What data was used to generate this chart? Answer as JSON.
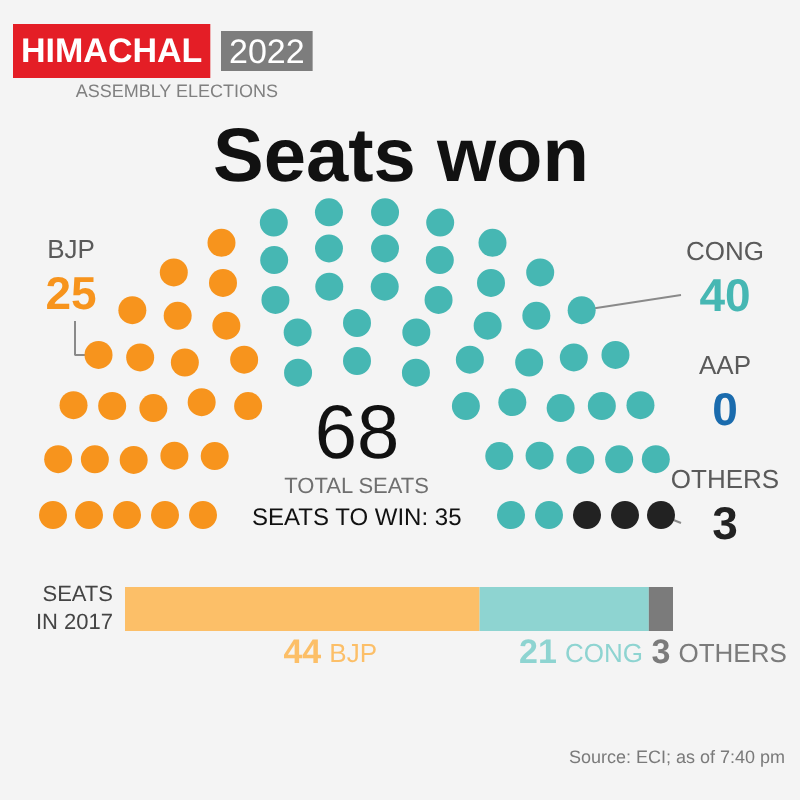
{
  "chart_data": [
    {
      "type": "other",
      "title": "Seats won",
      "categories": [
        "BJP",
        "CONG",
        "AAP",
        "OTHERS"
      ],
      "values": [
        25,
        40,
        0,
        3
      ],
      "colors": [
        "#f7941d",
        "#46b7b3",
        "#1a6bad",
        "#222222"
      ],
      "data_labels": true,
      "annotations": [
        "HIMACHAL",
        "2022",
        "ASSEMBLY ELECTIONS",
        "68",
        "TOTAL SEATS",
        "SEATS TO WIN: 35"
      ]
    },
    {
      "type": "bar",
      "orientation": "horizontal",
      "stacked": true,
      "categories": [
        "SEATS IN 2017"
      ],
      "series": [
        {
          "name": "BJP",
          "color": "#fcbf68",
          "values": [
            44
          ]
        },
        {
          "name": "CONG",
          "color": "#8ed4d1",
          "values": [
            21
          ]
        },
        {
          "name": "OTHERS",
          "color": "#7b7b7b",
          "values": [
            3
          ]
        }
      ],
      "data_labels": true,
      "tick_labels": "y",
      "annotations": [
        "Source: ECI; as of 7:40 pm"
      ]
    }
  ]
}
